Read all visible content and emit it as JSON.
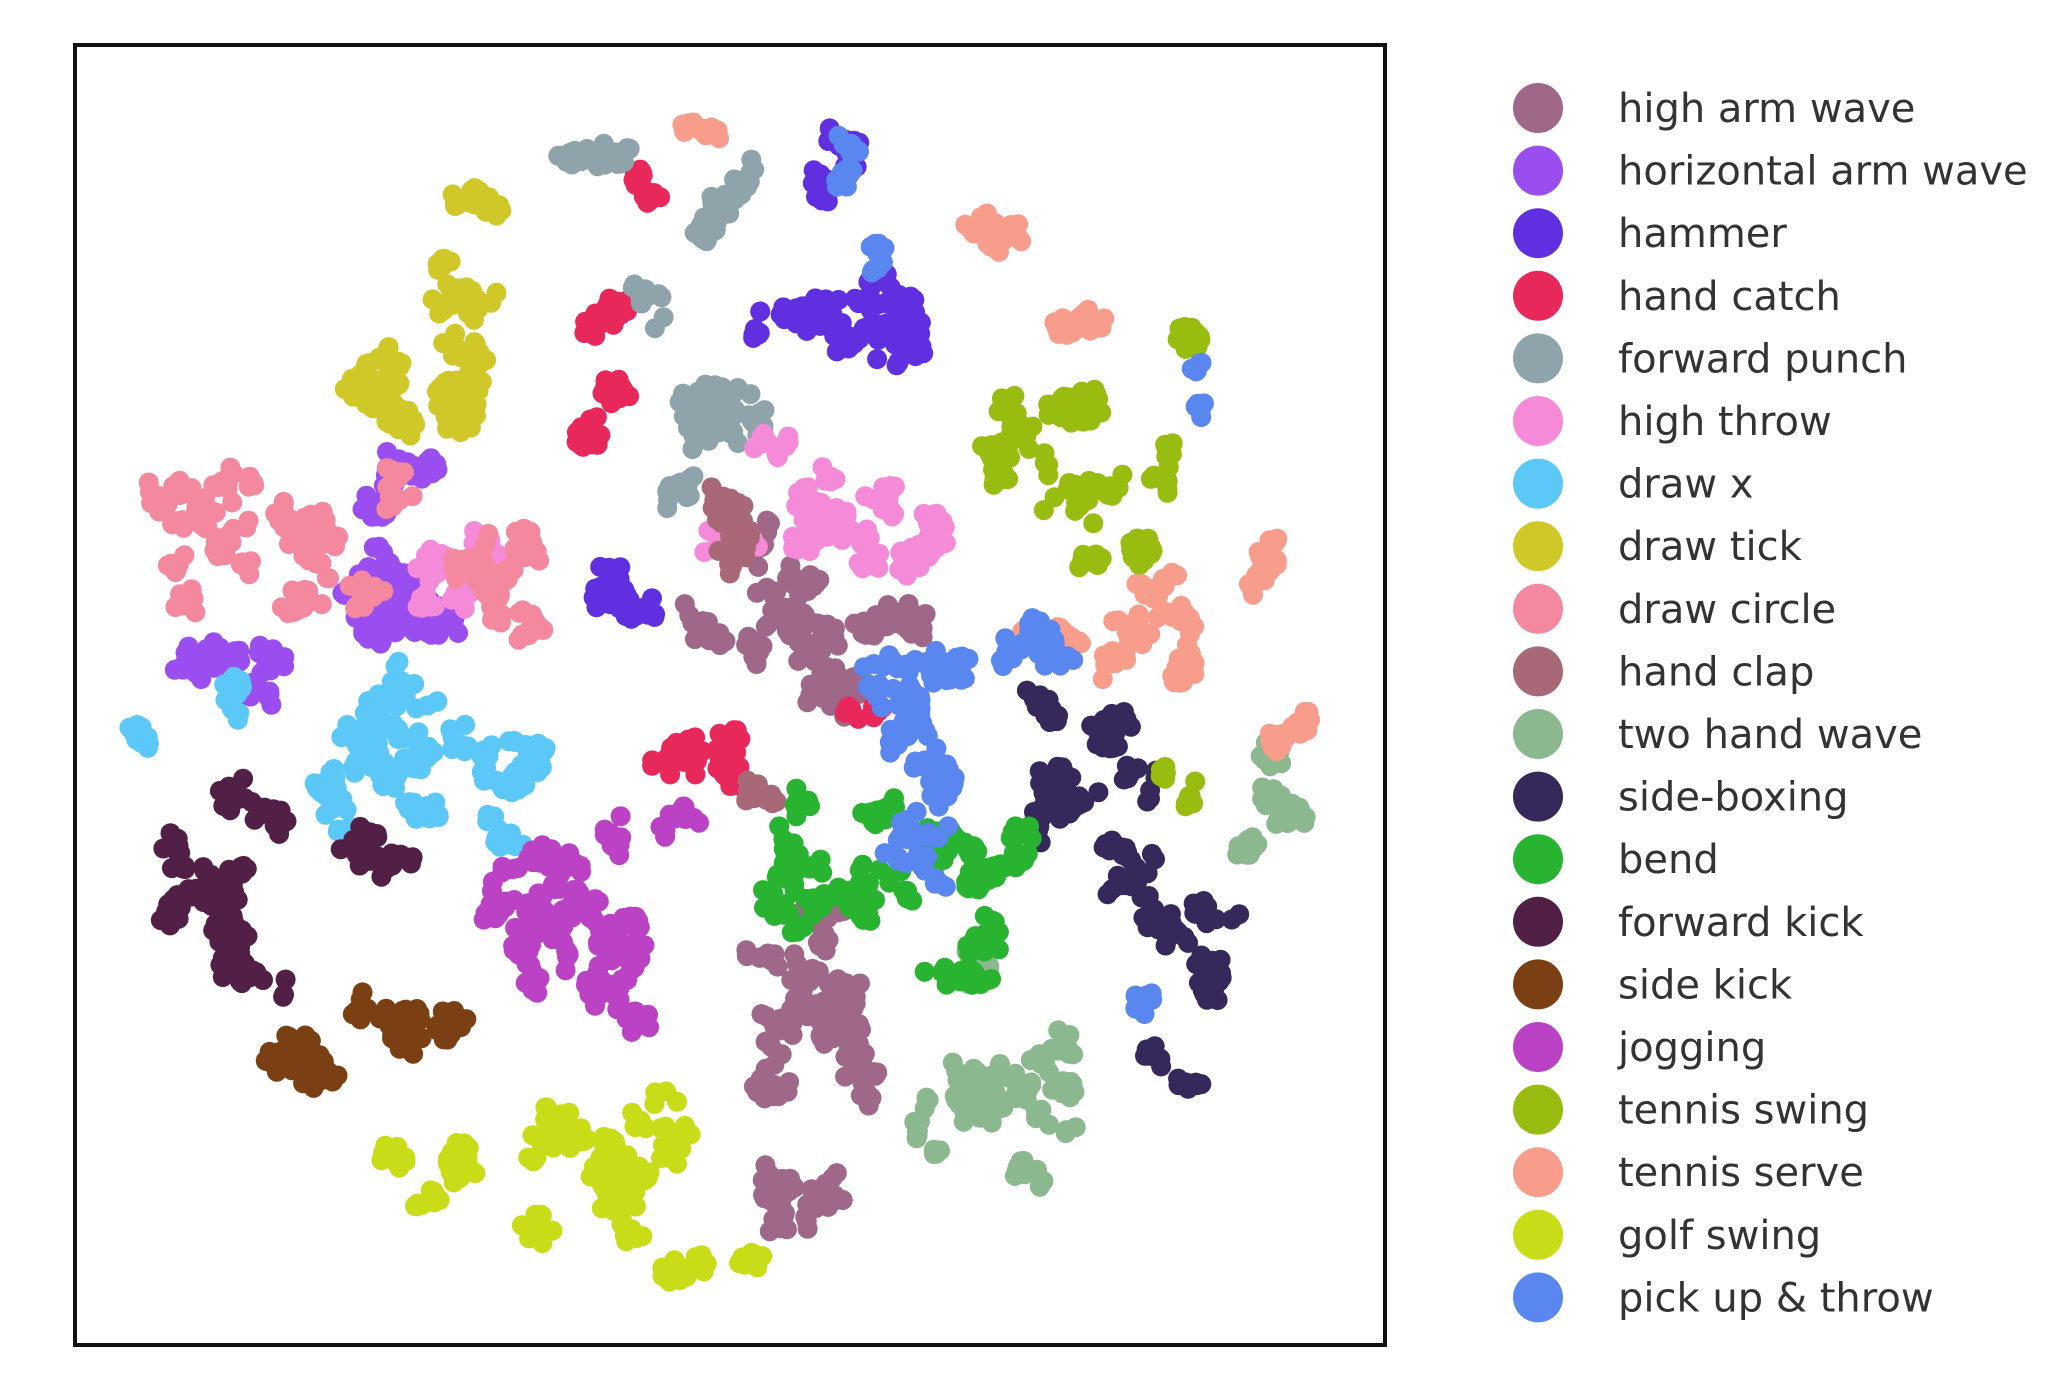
{
  "chart_data": {
    "type": "scatter",
    "title": "",
    "xlabel": "",
    "ylabel": "",
    "xlim": [
      0,
      100
    ],
    "ylim": [
      0,
      100
    ],
    "grid": false,
    "axis_ticks": false,
    "legend_position": "right",
    "series": [
      {
        "name": "high arm wave",
        "color": "#a06888",
        "clusters": [
          {
            "cx": 54,
            "cy": 55,
            "rx": 6,
            "ry": 5,
            "n": 140
          },
          {
            "cx": 56,
            "cy": 25,
            "rx": 6,
            "ry": 7,
            "n": 160
          },
          {
            "cx": 55,
            "cy": 11,
            "rx": 2.5,
            "ry": 5,
            "n": 60
          },
          {
            "cx": 61,
            "cy": 56,
            "rx": 3,
            "ry": 2,
            "n": 40
          }
        ]
      },
      {
        "name": "horizontal arm wave",
        "color": "#9b4ef0",
        "clusters": [
          {
            "cx": 24,
            "cy": 57,
            "rx": 6,
            "ry": 4,
            "n": 160
          },
          {
            "cx": 12,
            "cy": 53,
            "rx": 4,
            "ry": 3,
            "n": 60
          },
          {
            "cx": 24,
            "cy": 66,
            "rx": 3,
            "ry": 3,
            "n": 40
          }
        ]
      },
      {
        "name": "hammer",
        "color": "#6030e0",
        "clusters": [
          {
            "cx": 59,
            "cy": 78,
            "rx": 6,
            "ry": 5,
            "n": 120
          },
          {
            "cx": 57,
            "cy": 91,
            "rx": 2.5,
            "ry": 3,
            "n": 30
          },
          {
            "cx": 41,
            "cy": 58,
            "rx": 3,
            "ry": 4,
            "n": 50
          }
        ]
      },
      {
        "name": "hand catch",
        "color": "#e8285a",
        "clusters": [
          {
            "cx": 41,
            "cy": 77,
            "rx": 3,
            "ry": 9,
            "n": 110
          },
          {
            "cx": 48,
            "cy": 45,
            "rx": 4,
            "ry": 3,
            "n": 70
          },
          {
            "cx": 59,
            "cy": 49,
            "rx": 2,
            "ry": 1.5,
            "n": 15
          }
        ]
      },
      {
        "name": "forward punch",
        "color": "#8fa4aa",
        "clusters": [
          {
            "cx": 48,
            "cy": 72,
            "rx": 5,
            "ry": 8,
            "n": 120
          },
          {
            "cx": 41,
            "cy": 91,
            "rx": 3,
            "ry": 2,
            "n": 40
          },
          {
            "cx": 49,
            "cy": 86,
            "rx": 2,
            "ry": 3,
            "n": 30
          }
        ]
      },
      {
        "name": "high throw",
        "color": "#f58ad8",
        "clusters": [
          {
            "cx": 56,
            "cy": 64,
            "rx": 6,
            "ry": 4,
            "n": 130
          },
          {
            "cx": 65,
            "cy": 60,
            "rx": 3,
            "ry": 3,
            "n": 40
          },
          {
            "cx": 30,
            "cy": 58,
            "rx": 5,
            "ry": 5,
            "n": 50
          }
        ]
      },
      {
        "name": "draw x",
        "color": "#5cc8f8",
        "clusters": [
          {
            "cx": 24,
            "cy": 46,
            "rx": 7,
            "ry": 5,
            "n": 170
          },
          {
            "cx": 34,
            "cy": 44,
            "rx": 4,
            "ry": 4,
            "n": 70
          },
          {
            "cx": 5,
            "cy": 47,
            "rx": 1.5,
            "ry": 1.5,
            "n": 15
          }
        ]
      },
      {
        "name": "draw tick",
        "color": "#d0c828",
        "clusters": [
          {
            "cx": 27,
            "cy": 77,
            "rx": 7,
            "ry": 7,
            "n": 170
          },
          {
            "cx": 31,
            "cy": 86,
            "rx": 3,
            "ry": 2,
            "n": 30
          }
        ]
      },
      {
        "name": "draw circle",
        "color": "#f4889e",
        "clusters": [
          {
            "cx": 17,
            "cy": 63,
            "rx": 9,
            "ry": 6,
            "n": 160
          },
          {
            "cx": 32,
            "cy": 60,
            "rx": 5,
            "ry": 5,
            "n": 80
          },
          {
            "cx": 7,
            "cy": 58,
            "rx": 2,
            "ry": 2,
            "n": 20
          }
        ]
      },
      {
        "name": "hand clap",
        "color": "#a86878",
        "clusters": [
          {
            "cx": 51,
            "cy": 60,
            "rx": 3,
            "ry": 4,
            "n": 70
          },
          {
            "cx": 52,
            "cy": 42,
            "rx": 2,
            "ry": 2,
            "n": 20
          }
        ]
      },
      {
        "name": "two hand wave",
        "color": "#8cb890",
        "clusters": [
          {
            "cx": 69,
            "cy": 19,
            "rx": 6,
            "ry": 7,
            "n": 150
          },
          {
            "cx": 92,
            "cy": 39,
            "rx": 2.5,
            "ry": 5,
            "n": 50
          }
        ]
      },
      {
        "name": "side-boxing",
        "color": "#36285a",
        "clusters": [
          {
            "cx": 78,
            "cy": 42,
            "rx": 6,
            "ry": 6,
            "n": 120
          },
          {
            "cx": 83,
            "cy": 32,
            "rx": 4,
            "ry": 3,
            "n": 50
          },
          {
            "cx": 88,
            "cy": 28,
            "rx": 2,
            "ry": 2,
            "n": 20
          },
          {
            "cx": 84,
            "cy": 22,
            "rx": 2,
            "ry": 2,
            "n": 15
          },
          {
            "cx": 75,
            "cy": 50,
            "rx": 2,
            "ry": 2,
            "n": 20
          }
        ]
      },
      {
        "name": "bend",
        "color": "#28b430",
        "clusters": [
          {
            "cx": 61,
            "cy": 36,
            "rx": 7,
            "ry": 6,
            "n": 160
          },
          {
            "cx": 70,
            "cy": 35,
            "rx": 4,
            "ry": 5,
            "n": 90
          }
        ]
      },
      {
        "name": "forward kick",
        "color": "#522046",
        "clusters": [
          {
            "cx": 12,
            "cy": 35,
            "rx": 7,
            "ry": 7,
            "n": 170
          },
          {
            "cx": 24,
            "cy": 38,
            "rx": 4,
            "ry": 2,
            "n": 40
          }
        ]
      },
      {
        "name": "side kick",
        "color": "#7a4014",
        "clusters": [
          {
            "cx": 25,
            "cy": 25,
            "rx": 5,
            "ry": 3.5,
            "n": 90
          },
          {
            "cx": 17,
            "cy": 23,
            "rx": 3.5,
            "ry": 2.5,
            "n": 50
          }
        ]
      },
      {
        "name": "jogging",
        "color": "#bb42c4",
        "clusters": [
          {
            "cx": 37,
            "cy": 34,
            "rx": 7,
            "ry": 7,
            "n": 190
          },
          {
            "cx": 40,
            "cy": 26,
            "rx": 3,
            "ry": 3,
            "n": 40
          }
        ]
      },
      {
        "name": "tennis swing",
        "color": "#98bc10",
        "clusters": [
          {
            "cx": 75,
            "cy": 69,
            "rx": 8,
            "ry": 6,
            "n": 140
          },
          {
            "cx": 82,
            "cy": 60,
            "rx": 2,
            "ry": 3,
            "n": 30
          },
          {
            "cx": 85,
            "cy": 42,
            "rx": 1.5,
            "ry": 2,
            "n": 15
          },
          {
            "cx": 86,
            "cy": 76,
            "rx": 2,
            "ry": 2,
            "n": 20
          }
        ]
      },
      {
        "name": "tennis serve",
        "color": "#f89c8c",
        "clusters": [
          {
            "cx": 83,
            "cy": 55,
            "rx": 5,
            "ry": 5,
            "n": 90
          },
          {
            "cx": 70,
            "cy": 87,
            "rx": 3,
            "ry": 2,
            "n": 40
          },
          {
            "cx": 75,
            "cy": 80,
            "rx": 3,
            "ry": 2,
            "n": 30
          },
          {
            "cx": 48,
            "cy": 94,
            "rx": 2,
            "ry": 1.5,
            "n": 15
          },
          {
            "cx": 90,
            "cy": 60,
            "rx": 2,
            "ry": 3,
            "n": 25
          },
          {
            "cx": 93,
            "cy": 48,
            "rx": 2,
            "ry": 3,
            "n": 25
          }
        ]
      },
      {
        "name": "golf swing",
        "color": "#c8dc18",
        "clusters": [
          {
            "cx": 40,
            "cy": 15,
            "rx": 7,
            "ry": 6,
            "n": 140
          },
          {
            "cx": 28,
            "cy": 14,
            "rx": 4,
            "ry": 3,
            "n": 50
          },
          {
            "cx": 47,
            "cy": 7,
            "rx": 4,
            "ry": 2.5,
            "n": 50
          }
        ]
      },
      {
        "name": "pick up & throw",
        "color": "#5a86f0",
        "clusters": [
          {
            "cx": 65,
            "cy": 47,
            "rx": 5,
            "ry": 7,
            "n": 120
          },
          {
            "cx": 73,
            "cy": 54,
            "rx": 3,
            "ry": 3,
            "n": 40
          },
          {
            "cx": 60,
            "cy": 90,
            "rx": 2,
            "ry": 2,
            "n": 20
          },
          {
            "cx": 62,
            "cy": 83,
            "rx": 1.5,
            "ry": 1.5,
            "n": 12
          },
          {
            "cx": 86,
            "cy": 73,
            "rx": 1.5,
            "ry": 1.5,
            "n": 12
          },
          {
            "cx": 82,
            "cy": 26,
            "rx": 1.5,
            "ry": 1.5,
            "n": 12
          }
        ]
      }
    ]
  }
}
